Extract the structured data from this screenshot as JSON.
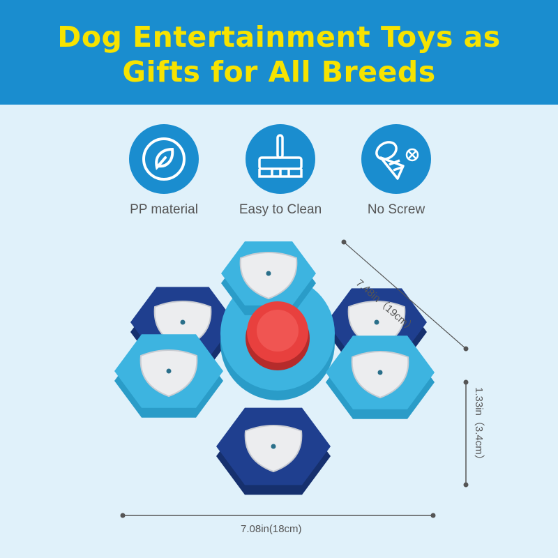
{
  "header": {
    "title_line1": "Dog Entertainment Toys as",
    "title_line2": "Gifts for All Breeds"
  },
  "features": [
    {
      "label": "PP material",
      "icon": "leaf-icon"
    },
    {
      "label": "Easy to Clean",
      "icon": "broom-icon"
    },
    {
      "label": "No Screw",
      "icon": "no-screw-icon"
    }
  ],
  "dimensions": {
    "diagonal": "7.48in（19cm）",
    "height": "1.33in（3.4cm）",
    "width": "7.08in(18cm)"
  },
  "colors": {
    "header": "#1a8dcf",
    "title": "#f7e300",
    "background": "#e0f1fa",
    "light_blue": "#3db4e0",
    "dark_blue": "#1f3f8f",
    "button": "#e8403e"
  }
}
